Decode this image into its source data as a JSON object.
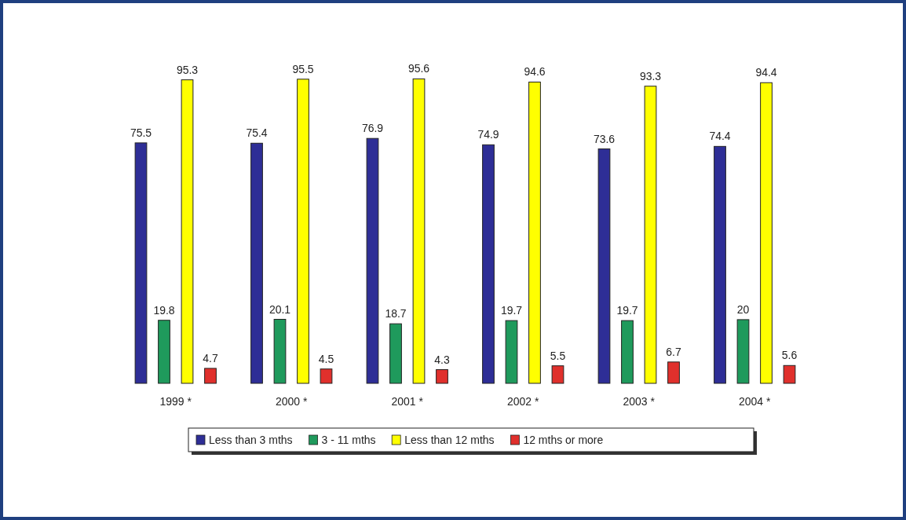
{
  "chart_data": {
    "type": "bar",
    "categories": [
      "1999 *",
      "2000 *",
      "2001 *",
      "2002 *",
      "2003 *",
      "2004 *"
    ],
    "series": [
      {
        "name": "Less than 3 mths",
        "color": "#2e2e96",
        "values": [
          75.5,
          75.4,
          76.9,
          74.9,
          73.6,
          74.4
        ]
      },
      {
        "name": "3 - 11 mths",
        "color": "#1f9a5c",
        "values": [
          19.8,
          20.1,
          18.7,
          19.7,
          19.7,
          20
        ]
      },
      {
        "name": "Less than 12 mths",
        "color": "#ffff00",
        "values": [
          95.3,
          95.5,
          95.6,
          94.6,
          93.3,
          94.4
        ]
      },
      {
        "name": "12 mths or more",
        "color": "#e0302c",
        "values": [
          4.7,
          4.5,
          4.3,
          5.5,
          6.7,
          5.6
        ]
      }
    ],
    "data_labels": true,
    "legend": "bottom"
  }
}
